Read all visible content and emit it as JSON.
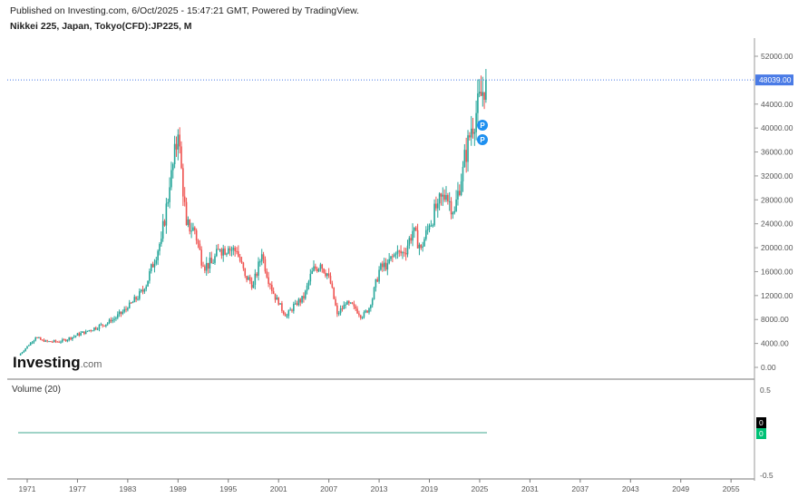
{
  "header": {
    "published": "Published on Investing.com, 6/Oct/2025 - 15:47:21 GMT, Powered by TradingView.",
    "symbol": "Nikkei 225, Japan, Tokyo(CFD):JP225, M"
  },
  "logo": {
    "brand": "Investing",
    "suffix": ".com"
  },
  "volume_pane": {
    "label": "Volume (20)",
    "ticks": [
      "0.5",
      "-0.5"
    ],
    "badge_black": "0",
    "badge_green": "0"
  },
  "colors": {
    "up": "#26a69a",
    "down": "#ef5350",
    "last_price": "#4a7be6",
    "volume_green": "#00c176"
  },
  "markers": [
    {
      "icon": "P",
      "label": "P"
    },
    {
      "icon": "P",
      "label": "P"
    }
  ],
  "chart_data": {
    "type": "candlestick",
    "title": "Nikkei 225, Japan, Tokyo(CFD):JP225, M",
    "ylim": [
      0,
      52000
    ],
    "xlim": [
      1969.5,
      2056
    ],
    "y_ticks": [
      "0.00",
      "4000.00",
      "8000.00",
      "12000.00",
      "16000.00",
      "20000.00",
      "24000.00",
      "28000.00",
      "32000.00",
      "36000.00",
      "40000.00",
      "44000.00",
      "52000.00"
    ],
    "x_ticks": [
      "1971",
      "1977",
      "1983",
      "1989",
      "1995",
      "2001",
      "2007",
      "2013",
      "2019",
      "2025",
      "2031",
      "2037",
      "2043",
      "2049",
      "2055"
    ],
    "last_price": "48039.00",
    "grid": false,
    "series": {
      "x": [
        1970,
        1972,
        1973,
        1975,
        1978,
        1981,
        1983,
        1985,
        1987,
        1988,
        1989,
        1990,
        1991,
        1992,
        1993,
        1994,
        1995,
        1996,
        1997,
        1998,
        1999,
        2000,
        2001,
        2002,
        2003,
        2004,
        2005,
        2006,
        2007,
        2008,
        2009,
        2010,
        2011,
        2012,
        2013,
        2014,
        2015,
        2016,
        2017,
        2018,
        2019,
        2020,
        2021,
        2022,
        2023,
        2024,
        2025.75
      ],
      "close": [
        2000,
        5000,
        4300,
        4300,
        6000,
        7700,
        9900,
        13100,
        21500,
        30100,
        38900,
        23800,
        22900,
        16900,
        17400,
        19700,
        19900,
        19400,
        15300,
        13800,
        18900,
        13800,
        10500,
        8600,
        10700,
        11500,
        16100,
        17200,
        15300,
        8900,
        10500,
        10200,
        8400,
        10400,
        16300,
        17400,
        19000,
        19100,
        22800,
        20000,
        23700,
        27400,
        28800,
        26100,
        33500,
        39900,
        48039
      ]
    }
  }
}
